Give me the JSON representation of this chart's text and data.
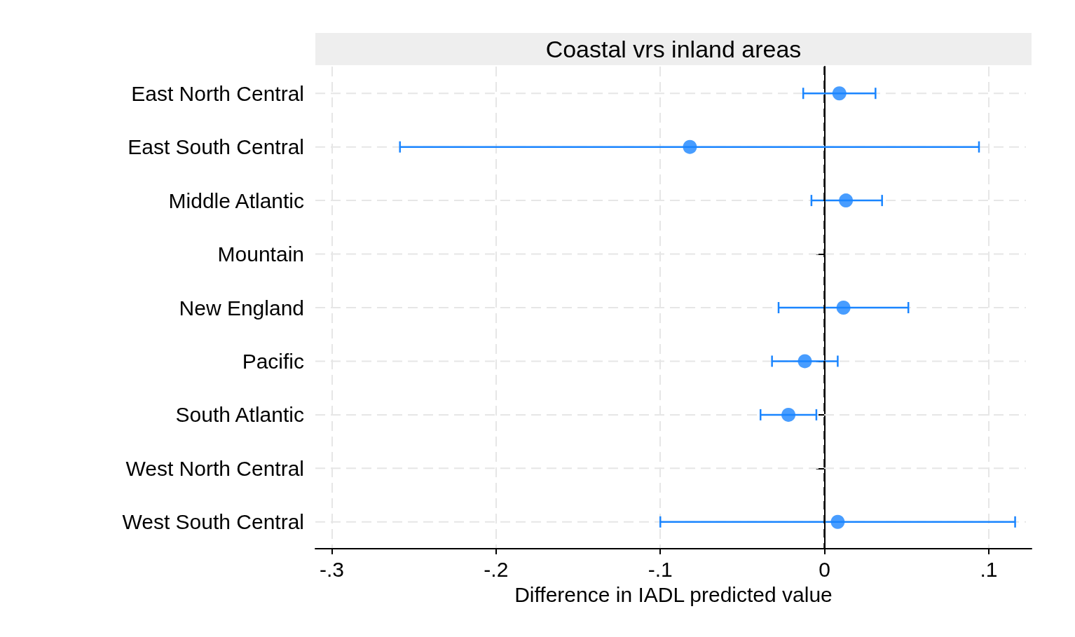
{
  "chart_data": {
    "type": "scatter",
    "orientation": "horizontal",
    "title": "Coastal vrs inland areas",
    "xlabel": "Difference in IADL predicted value",
    "categories": [
      "East North Central",
      "East South Central",
      "Middle Atlantic",
      "Mountain",
      "New England",
      "Pacific",
      "South Atlantic",
      "West North Central",
      "West South Central"
    ],
    "values": [
      0.009,
      -0.082,
      0.013,
      null,
      0.0115,
      -0.012,
      -0.022,
      null,
      0.008
    ],
    "errors": [
      [
        -0.013,
        0.031
      ],
      [
        -0.2585,
        0.094
      ],
      [
        -0.008,
        0.035
      ],
      null,
      [
        -0.028,
        0.051
      ],
      [
        -0.032,
        0.008
      ],
      [
        -0.039,
        -0.005
      ],
      null,
      [
        -0.1,
        0.116
      ]
    ],
    "color": "#1a85ff",
    "marker": "circle",
    "xlim": [
      -0.31,
      0.126
    ],
    "xticks": [
      {
        "value": -0.3,
        "label": "-.3"
      },
      {
        "value": -0.2,
        "label": "-.2"
      },
      {
        "value": -0.1,
        "label": "-.1"
      },
      0,
      {
        "value": 0.1,
        "label": ".1"
      }
    ],
    "ref_lines": [
      {
        "axis": "x",
        "value": 0,
        "label": null,
        "color": "#000000",
        "line_style": "dashed"
      }
    ],
    "grid": true
  }
}
